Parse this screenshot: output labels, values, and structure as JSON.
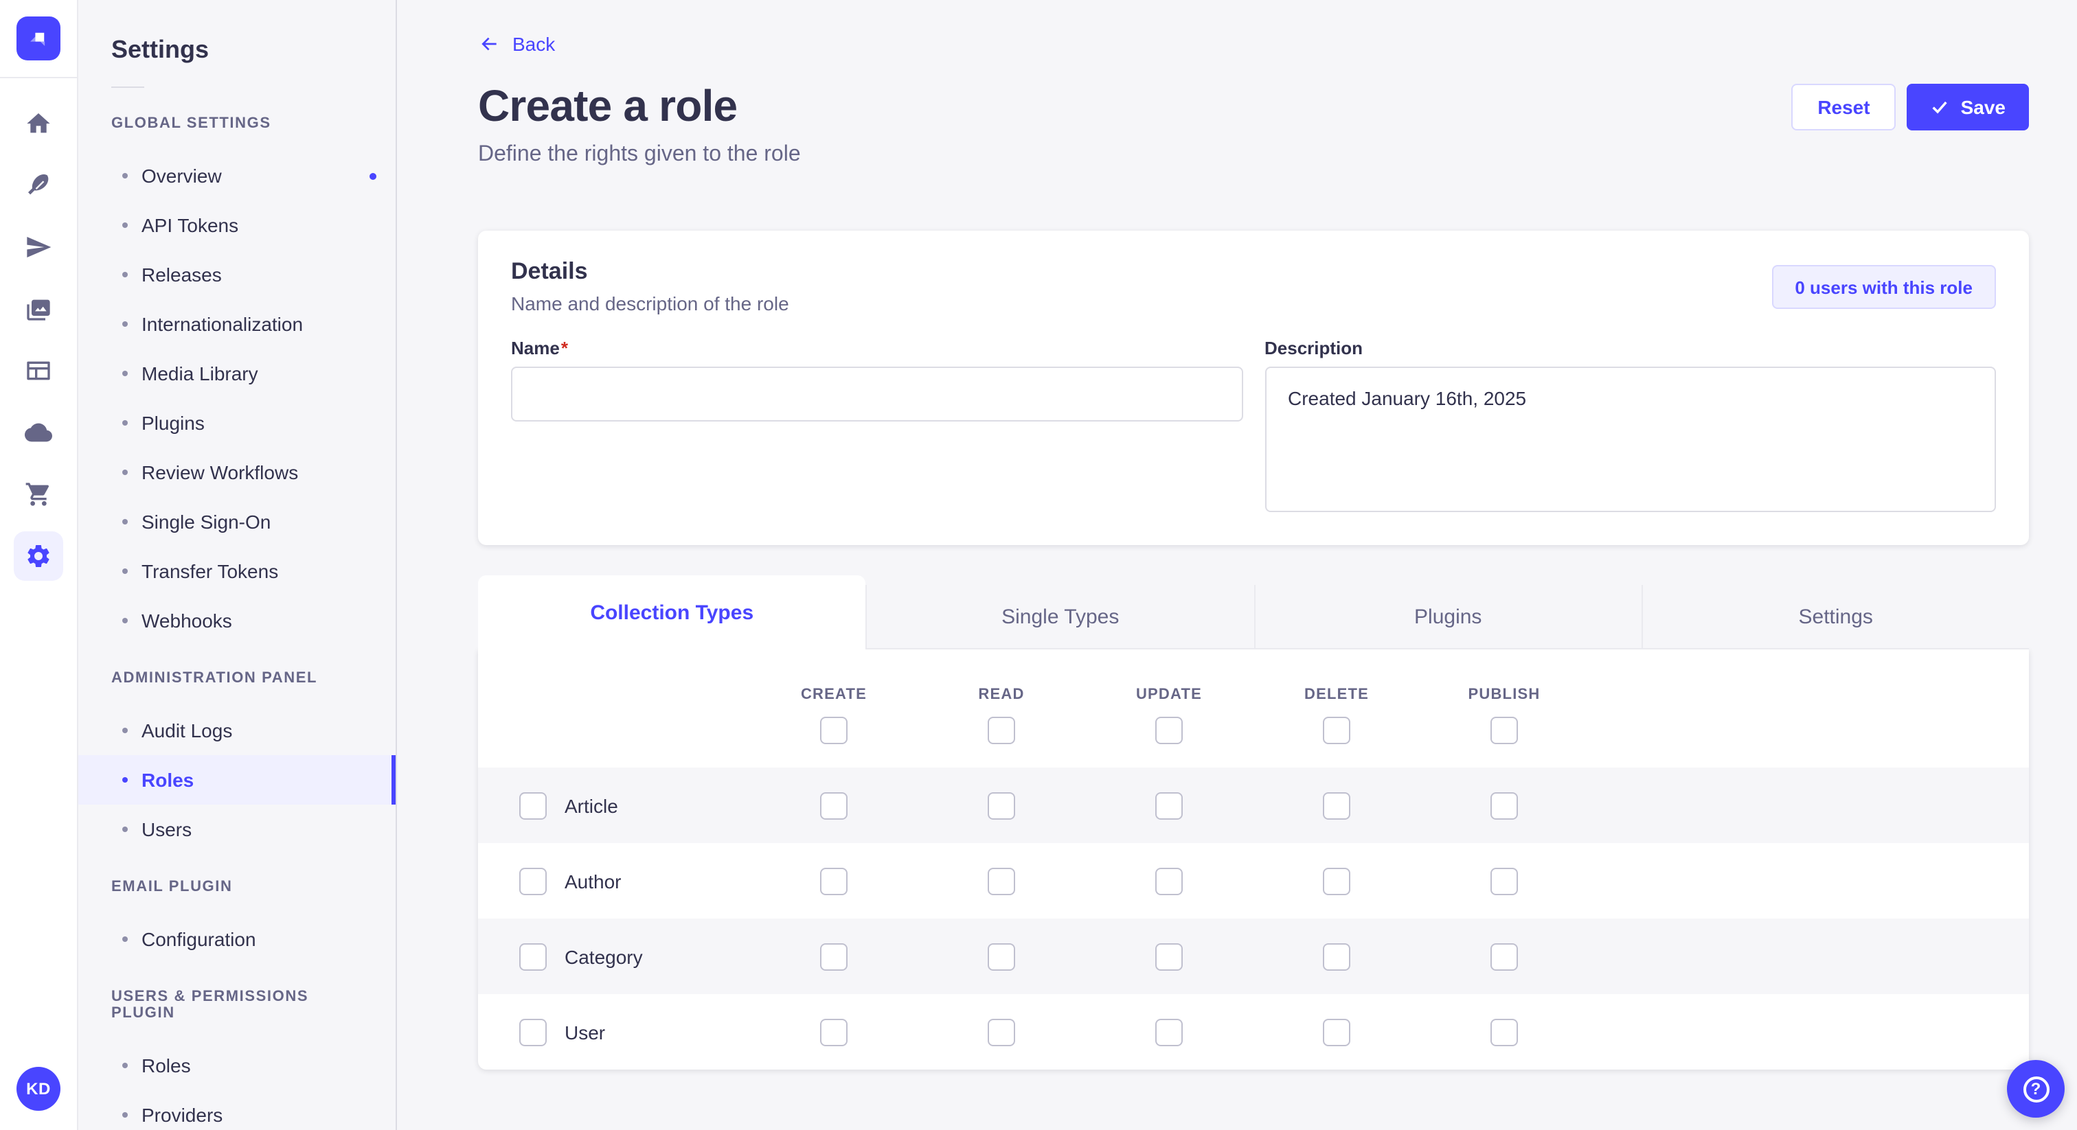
{
  "rail": {
    "logo": "strapi-logo",
    "items": [
      {
        "icon": "home-icon"
      },
      {
        "icon": "feather-icon"
      },
      {
        "icon": "paper-plane-icon"
      },
      {
        "icon": "media-library-icon"
      },
      {
        "icon": "layout-icon"
      },
      {
        "icon": "cloud-icon"
      },
      {
        "icon": "cart-icon"
      },
      {
        "icon": "settings-gear-icon",
        "active": true
      }
    ],
    "avatar_initials": "KD"
  },
  "subnav": {
    "title": "Settings",
    "sections": [
      {
        "label": "GLOBAL SETTINGS",
        "items": [
          {
            "label": "Overview",
            "notification": true
          },
          {
            "label": "API Tokens"
          },
          {
            "label": "Releases"
          },
          {
            "label": "Internationalization"
          },
          {
            "label": "Media Library"
          },
          {
            "label": "Plugins"
          },
          {
            "label": "Review Workflows"
          },
          {
            "label": "Single Sign-On"
          },
          {
            "label": "Transfer Tokens"
          },
          {
            "label": "Webhooks"
          }
        ]
      },
      {
        "label": "ADMINISTRATION PANEL",
        "items": [
          {
            "label": "Audit Logs"
          },
          {
            "label": "Roles",
            "active": true
          },
          {
            "label": "Users"
          }
        ]
      },
      {
        "label": "EMAIL PLUGIN",
        "items": [
          {
            "label": "Configuration"
          }
        ]
      },
      {
        "label": "USERS & PERMISSIONS PLUGIN",
        "items": [
          {
            "label": "Roles"
          },
          {
            "label": "Providers"
          }
        ]
      }
    ]
  },
  "header": {
    "back": "Back",
    "title": "Create a role",
    "subtitle": "Define the rights given to the role",
    "reset": "Reset",
    "save": "Save"
  },
  "details": {
    "title": "Details",
    "subtitle": "Name and description of the role",
    "users_button": "0 users with this role",
    "name_label": "Name",
    "required_mark": "*",
    "name_value": "",
    "description_label": "Description",
    "description_value": "Created January 16th, 2025"
  },
  "permissions": {
    "tabs": [
      {
        "label": "Collection Types",
        "active": true
      },
      {
        "label": "Single Types"
      },
      {
        "label": "Plugins"
      },
      {
        "label": "Settings"
      }
    ],
    "columns": [
      "CREATE",
      "READ",
      "UPDATE",
      "DELETE",
      "PUBLISH"
    ],
    "rows": [
      "Article",
      "Author",
      "Category",
      "User"
    ],
    "checked": false
  },
  "fab": {
    "icon": "help-icon"
  },
  "colors": {
    "primary": "#4945ff",
    "primary_light": "#f0f0ff",
    "primary_border": "#d9d8ff",
    "danger": "#d02b20",
    "page_bg": "#f6f6f9"
  }
}
